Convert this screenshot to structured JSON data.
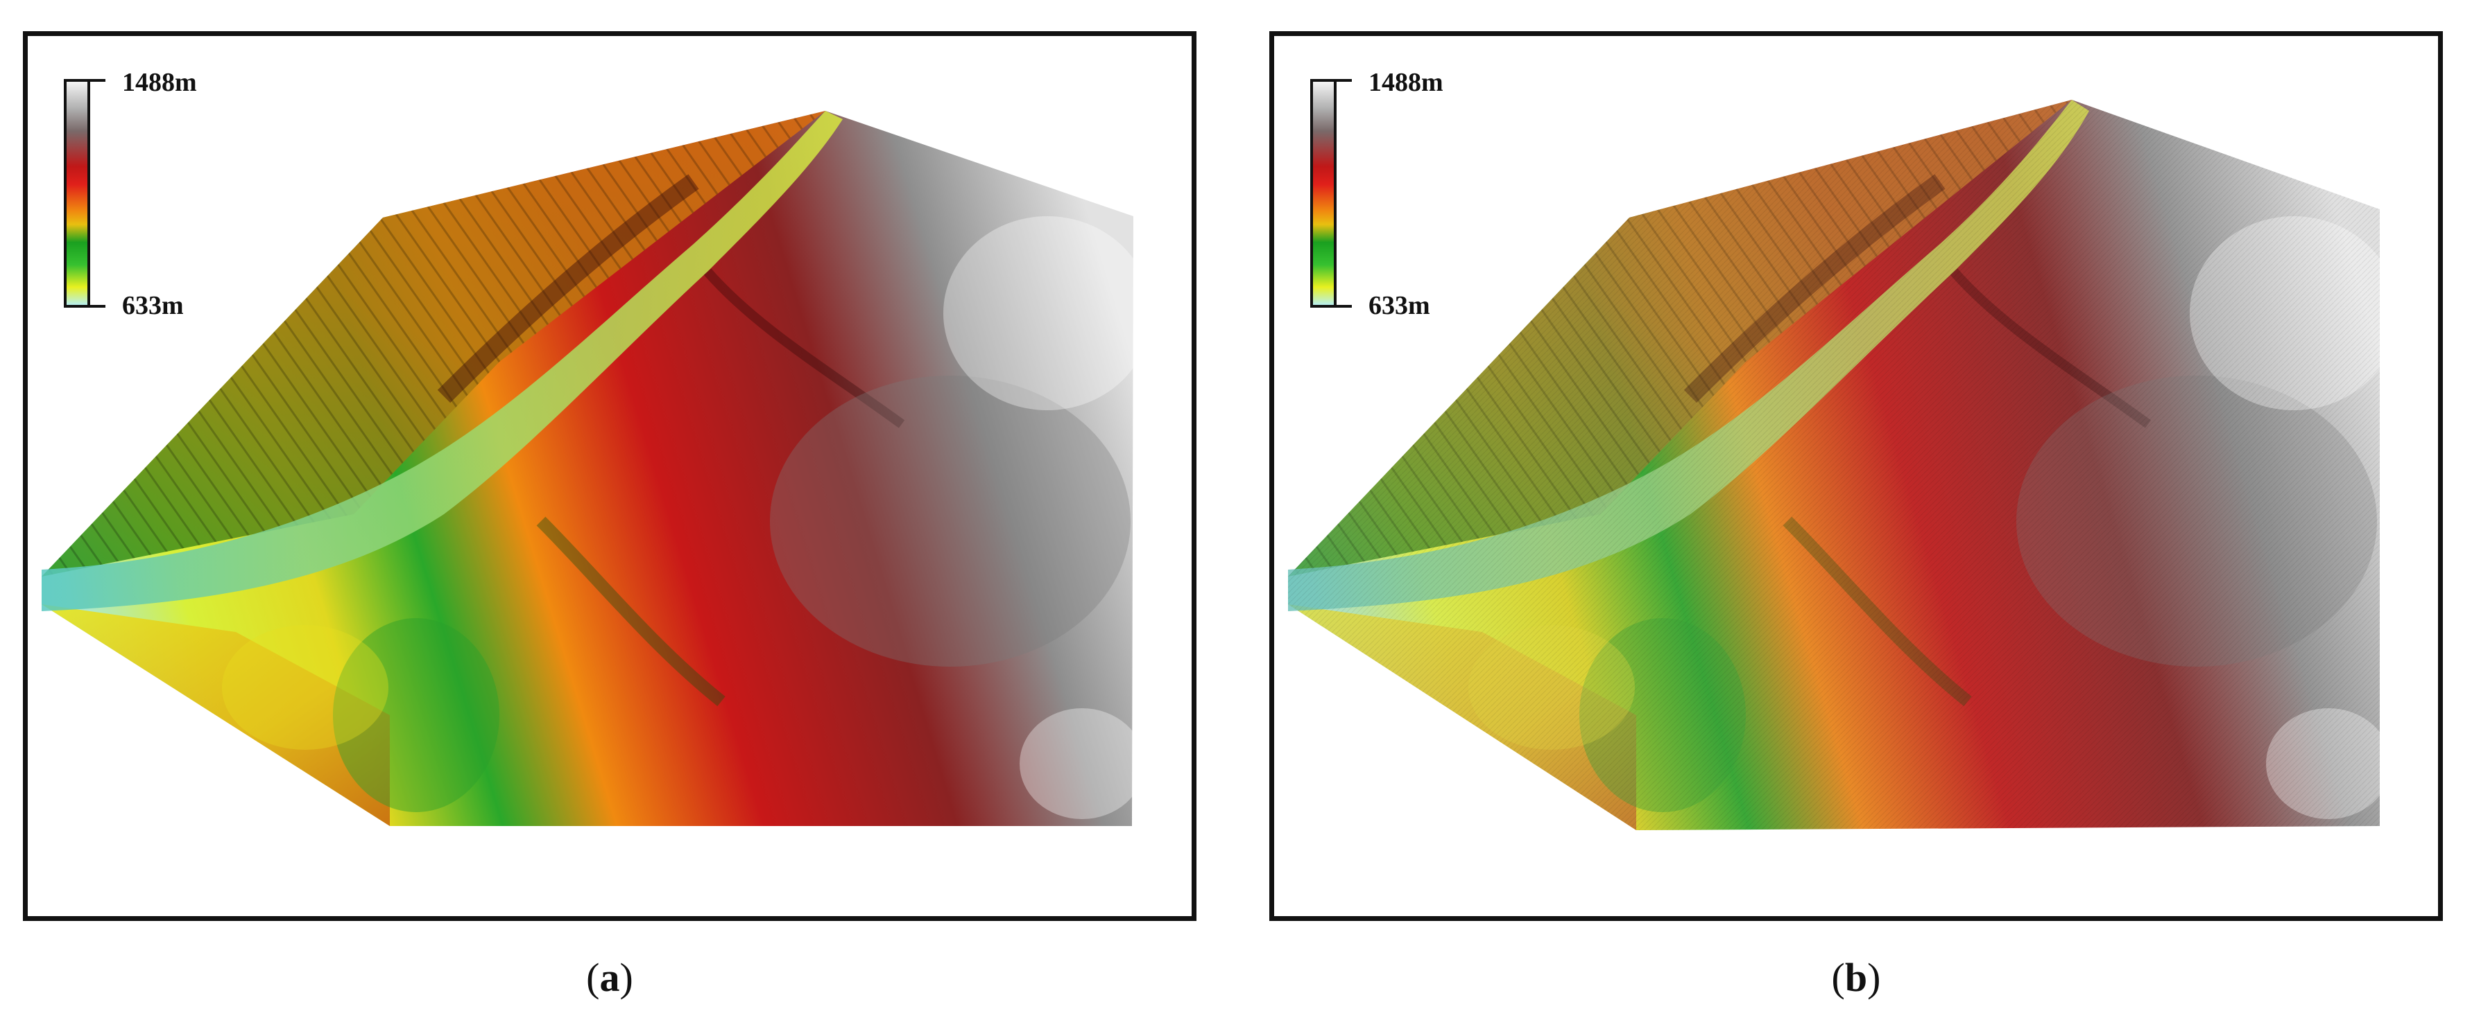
{
  "panels": [
    {
      "id": "a",
      "legend": {
        "max_label": "1488m",
        "min_label": "633m"
      },
      "caption": {
        "open": "(",
        "letter": "a",
        "close": ")"
      }
    },
    {
      "id": "b",
      "legend": {
        "max_label": "1488m",
        "min_label": "633m"
      },
      "caption": {
        "open": "(",
        "letter": "b",
        "close": ")"
      }
    }
  ],
  "colors": {
    "low": "#b8f0f0",
    "yellow": "#e8f020",
    "green": "#28b028",
    "orange": "#f08a10",
    "red": "#c81818",
    "dark_red": "#5a0a0a",
    "gray": "#9a9a9a",
    "light_gray": "#e6e6e6"
  }
}
